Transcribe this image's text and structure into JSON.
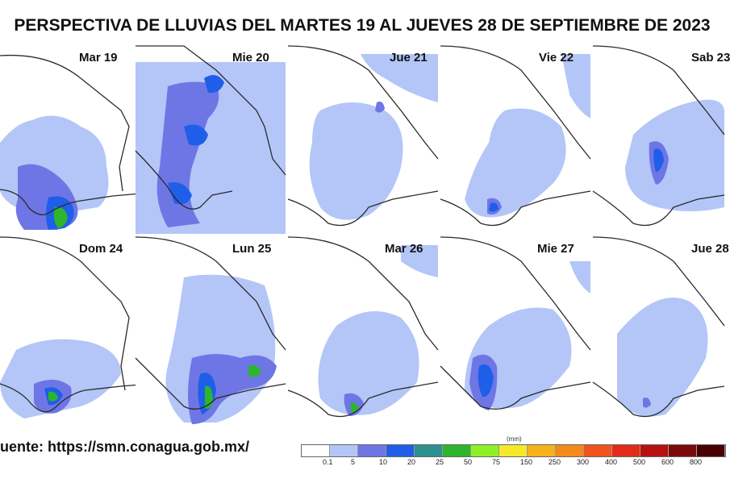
{
  "title": "PERSPECTIVA DE LLUVIAS DEL MARTES 19 AL JUEVES 28 DE SEPTIEMBRE DE 2023",
  "panels": [
    {
      "label": "Mar 19"
    },
    {
      "label": "Mie 20"
    },
    {
      "label": "Jue 21"
    },
    {
      "label": "Vie 22"
    },
    {
      "label": "Sab 23"
    },
    {
      "label": "Dom 24"
    },
    {
      "label": "Lun 25"
    },
    {
      "label": "Mar 26"
    },
    {
      "label": "Mie 27"
    },
    {
      "label": "Jue 28"
    }
  ],
  "source": "uente: https://smn.conagua.gob.mx/",
  "legend": {
    "unit": "(mm)",
    "colors": [
      "#ffffff",
      "#b3c6f7",
      "#6e76e6",
      "#1f5ee8",
      "#2e8f8f",
      "#2db52d",
      "#8ef026",
      "#f7e82a",
      "#f7b21e",
      "#f58a1c",
      "#f2531c",
      "#e12c1a",
      "#b61010",
      "#7c0a0a",
      "#4a0000"
    ],
    "ticks": [
      "0.1",
      "5",
      "10",
      "20",
      "25",
      "50",
      "75",
      "150",
      "250",
      "300",
      "400",
      "500",
      "600",
      "800"
    ]
  },
  "colors": {
    "light_rain": "#b3c6f7",
    "moderate_rain": "#6e76e6",
    "heavy_rain": "#1f5ee8",
    "very_heavy_rain": "#2db52d",
    "border_line": "#2a2a2a"
  }
}
